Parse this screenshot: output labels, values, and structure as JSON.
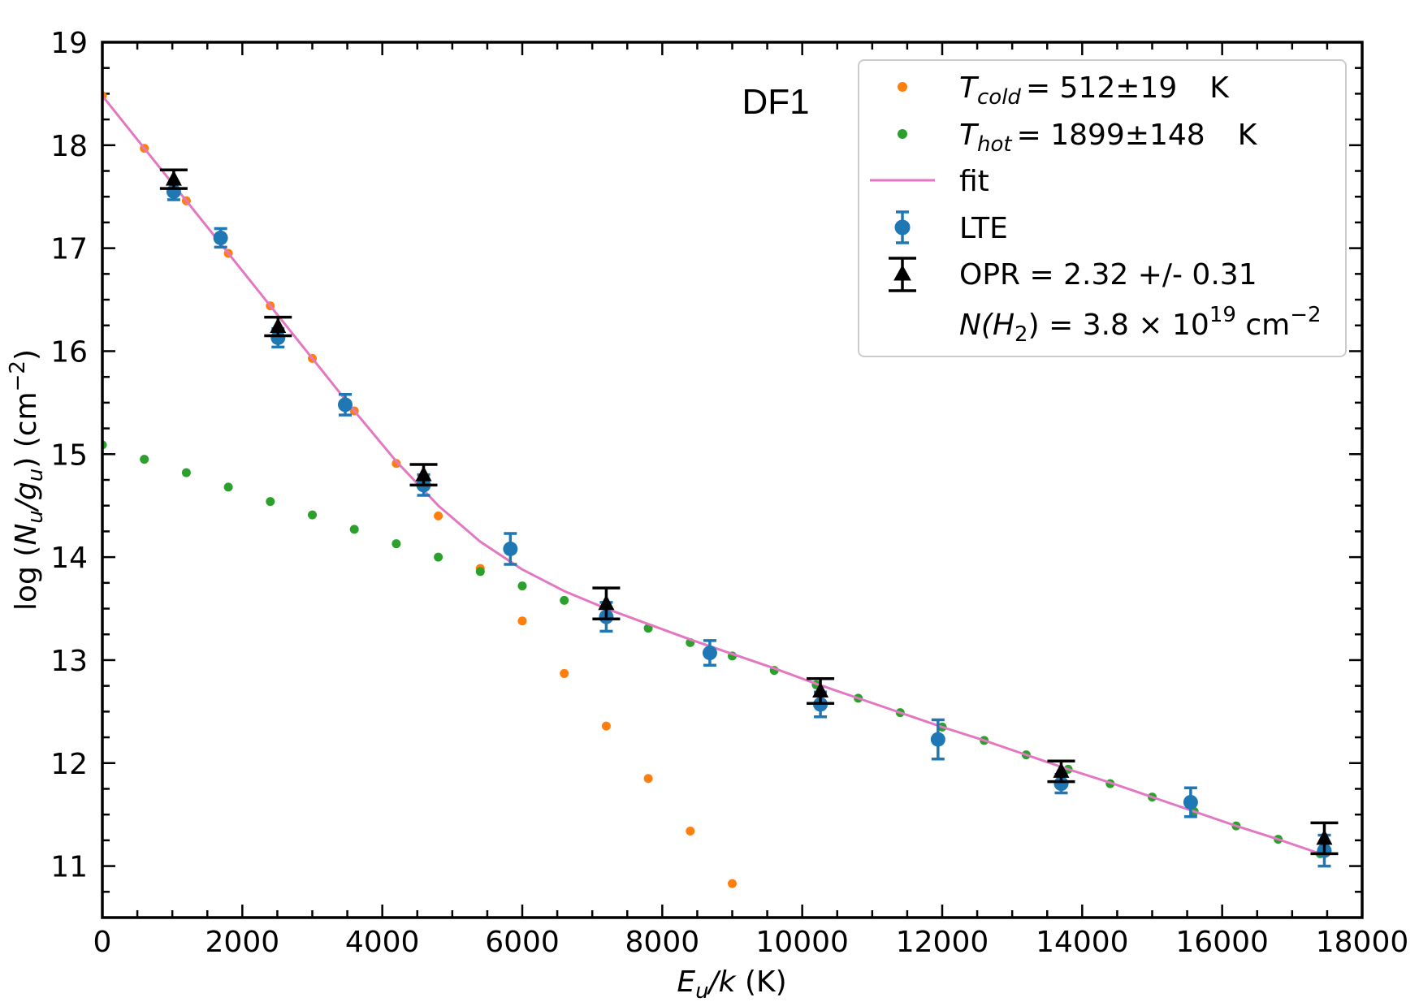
{
  "chart_data": {
    "type": "scatter",
    "panel_label": "DF1",
    "xlabel": "E_u/k (K)",
    "ylabel": "log (N_u/g_u) (cm^-2)",
    "xlim": [
      0,
      18000
    ],
    "ylim": [
      10.5,
      19
    ],
    "x_ticks": [
      0,
      2000,
      4000,
      6000,
      8000,
      10000,
      12000,
      14000,
      16000,
      18000
    ],
    "y_ticks": [
      11,
      12,
      13,
      14,
      15,
      16,
      17,
      18,
      19
    ],
    "legend_position": "top-right",
    "colors": {
      "cold": "#ff7f0e",
      "hot": "#2ca02c",
      "fit": "#e377c2",
      "lte": "#1f77b4",
      "opr": "#000000"
    },
    "legend": {
      "cold": {
        "sym": "T",
        "sub": "cold",
        "value": "= 512±19",
        "unit": "K"
      },
      "hot": {
        "sym": "T",
        "sub": "hot",
        "value": "= 1899±148",
        "unit": "K"
      },
      "fit": "fit",
      "lte": "LTE",
      "opr": "OPR = 2.32 +/- 0.31",
      "column": {
        "prefix": "N(H",
        "sub": "2",
        "mid": ") = 3.8 × 10",
        "sup": "19",
        "unit": " cm",
        "unit_sup": "−2"
      }
    },
    "series": [
      {
        "name": "T_cold",
        "kind": "dots",
        "x": [
          0,
          600,
          1200,
          1800,
          2400,
          3000,
          3600,
          4200,
          4800,
          5400,
          6000,
          6600,
          7200,
          7800,
          8400,
          9000
        ],
        "y": [
          18.48,
          17.97,
          17.46,
          16.95,
          16.44,
          15.93,
          15.42,
          14.91,
          14.4,
          13.89,
          13.38,
          12.87,
          12.36,
          11.85,
          11.34,
          10.83
        ]
      },
      {
        "name": "T_hot",
        "kind": "dots",
        "x": [
          0,
          600,
          1200,
          1800,
          2400,
          3000,
          3600,
          4200,
          4800,
          5400,
          6000,
          6600,
          7200,
          7800,
          8400,
          9000,
          9600,
          10200,
          10800,
          11400,
          12000,
          12600,
          13200,
          13800,
          14400,
          15000,
          15600,
          16200,
          16800,
          17400
        ],
        "y": [
          15.09,
          14.95,
          14.82,
          14.68,
          14.54,
          14.41,
          14.27,
          14.13,
          14.0,
          13.86,
          13.72,
          13.58,
          13.45,
          13.31,
          13.17,
          13.04,
          12.9,
          12.76,
          12.63,
          12.49,
          12.35,
          12.22,
          12.08,
          11.94,
          11.8,
          11.67,
          11.53,
          11.39,
          11.26,
          11.12
        ]
      },
      {
        "name": "fit",
        "kind": "line",
        "x": [
          0,
          600,
          1200,
          1800,
          2400,
          3000,
          3600,
          4200,
          4800,
          5400,
          6000,
          6600,
          7200,
          7800,
          8400,
          9000,
          9600,
          10200,
          10800,
          11400,
          12000,
          12600,
          13200,
          13800,
          14400,
          15000,
          15600,
          16200,
          16800,
          17400
        ],
        "y": [
          18.48,
          17.97,
          17.46,
          16.95,
          16.44,
          15.93,
          15.42,
          14.93,
          14.5,
          14.15,
          13.88,
          13.67,
          13.5,
          13.35,
          13.2,
          13.06,
          12.92,
          12.77,
          12.63,
          12.49,
          12.35,
          12.22,
          12.08,
          11.94,
          11.81,
          11.67,
          11.53,
          11.39,
          11.26,
          11.12
        ]
      },
      {
        "name": "LTE",
        "kind": "errorbar",
        "x": [
          1020,
          1690,
          2510,
          3470,
          4590,
          5830,
          7200,
          8680,
          10260,
          11940,
          13700,
          15550,
          17460
        ],
        "y": [
          17.55,
          17.1,
          16.13,
          15.48,
          14.7,
          14.08,
          13.42,
          13.07,
          12.57,
          12.23,
          11.8,
          11.62,
          11.15
        ],
        "err": [
          0.08,
          0.09,
          0.09,
          0.1,
          0.1,
          0.15,
          0.14,
          0.12,
          0.12,
          0.19,
          0.09,
          0.14,
          0.15
        ]
      },
      {
        "name": "OPR",
        "kind": "errorbar",
        "x": [
          1020,
          2510,
          4590,
          7200,
          10260,
          13700,
          17460
        ],
        "y": [
          17.67,
          16.24,
          14.8,
          13.55,
          12.7,
          11.92,
          11.27
        ],
        "err": [
          0.09,
          0.09,
          0.1,
          0.15,
          0.12,
          0.1,
          0.15
        ]
      }
    ]
  }
}
